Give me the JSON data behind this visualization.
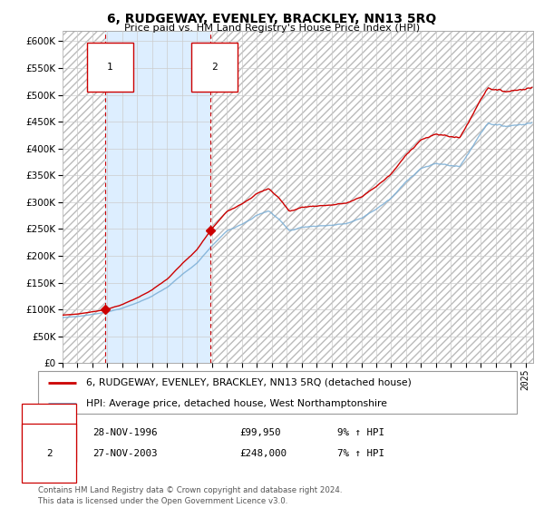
{
  "title": "6, RUDGEWAY, EVENLEY, BRACKLEY, NN13 5RQ",
  "subtitle": "Price paid vs. HM Land Registry's House Price Index (HPI)",
  "legend_line1": "6, RUDGEWAY, EVENLEY, BRACKLEY, NN13 5RQ (detached house)",
  "legend_line2": "HPI: Average price, detached house, West Northamptonshire",
  "sale1_date": "28-NOV-1996",
  "sale1_price": 99950,
  "sale1_label": "£99,950",
  "sale1_pct": "9% ↑ HPI",
  "sale2_date": "27-NOV-2003",
  "sale2_price": 248000,
  "sale2_label": "£248,000",
  "sale2_pct": "7% ↑ HPI",
  "footer": "Contains HM Land Registry data © Crown copyright and database right 2024.\nThis data is licensed under the Open Government Licence v3.0.",
  "ylim": [
    0,
    620000
  ],
  "yticks": [
    0,
    50000,
    100000,
    150000,
    200000,
    250000,
    300000,
    350000,
    400000,
    450000,
    500000,
    550000,
    600000
  ],
  "xstart": 1994.0,
  "xend": 2025.5,
  "red_line_color": "#cc0000",
  "blue_line_color": "#7aaed6",
  "shade_color": "#ddeeff",
  "vline_color": "#cc0000",
  "marker_color": "#cc0000",
  "bg_color": "#ffffff",
  "grid_color": "#cccccc",
  "hatch_color": "#bbbbbb"
}
